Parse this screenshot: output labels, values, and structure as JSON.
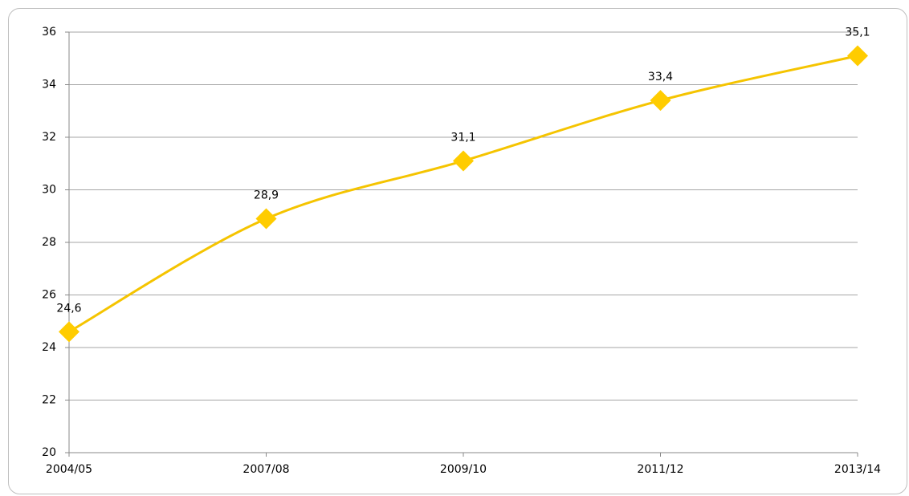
{
  "chart_data": {
    "type": "line",
    "categories": [
      "2004/05",
      "2007/08",
      "2009/10",
      "2011/12",
      "2013/14"
    ],
    "series": [
      {
        "color": "#f5c400",
        "marker_color": "#ffcc00",
        "values": [
          24.6,
          28.9,
          31.1,
          33.4,
          35.1
        ],
        "value_labels": [
          "24,6",
          "28,9",
          "31,1",
          "33,4",
          "35,1"
        ]
      }
    ],
    "ylim": [
      20,
      36
    ],
    "yticks": [
      20,
      22,
      24,
      26,
      28,
      30,
      32,
      34,
      36
    ],
    "grid": true,
    "smooth": true
  }
}
